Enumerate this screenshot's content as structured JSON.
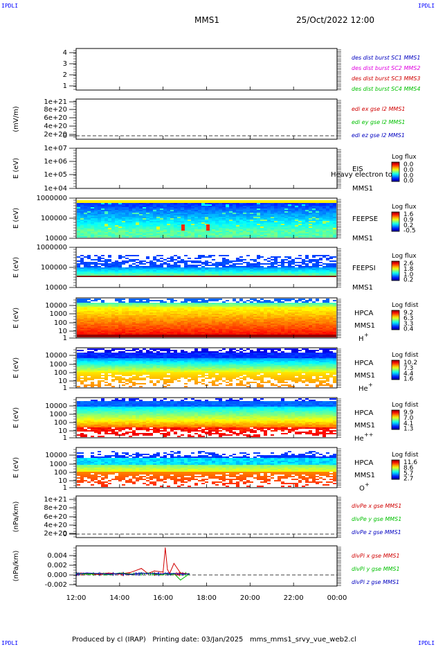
{
  "header": {
    "corner_label": "IPDLI",
    "spacecraft": "MMS1",
    "datetime": "25/Oct/2022 12:00"
  },
  "footer": {
    "producer": "Produced by cl (IRAP)",
    "printing_date": "Printing date: 03/Jan/2025",
    "filename": "mms_mms1_srvy_vue_web2.cl"
  },
  "colors": {
    "mms1": "#0000c0",
    "mms2": "#e000e0",
    "mms3": "#d00000",
    "mms4": "#00c000",
    "x_component": "#d00000",
    "y_component": "#00c000",
    "z_component": "#0000c0"
  },
  "time_axis": {
    "ticks": [
      "12:00",
      "14:00",
      "16:00",
      "18:00",
      "20:00",
      "22:00",
      "00:00"
    ],
    "range_hours": [
      12,
      24
    ]
  },
  "chart_data": [
    {
      "type": "line",
      "panel": "des_dist_burst",
      "ylabel": "",
      "yticks": [
        "4",
        "3",
        "2",
        "1"
      ],
      "ylim": [
        0.6,
        4.4
      ],
      "legend": [
        {
          "text": "des dist burst SC1 MMS1",
          "color": "#0000c0"
        },
        {
          "text": "des dist burst SC2 MMS2",
          "color": "#e000e0"
        },
        {
          "text": "des dist burst SC3 MMS3",
          "color": "#d00000"
        },
        {
          "text": "des dist burst SC4 MMS4",
          "color": "#00c000"
        }
      ],
      "series": []
    },
    {
      "type": "line",
      "panel": "edi_e",
      "ylabel": "(mV/m)",
      "yticks": [
        "1e+21",
        "8e+20",
        "6e+20",
        "4e+20",
        "2e+20",
        "0"
      ],
      "ylim": [
        -1e+20,
        1.05e+21
      ],
      "zero_line": true,
      "legend": [
        {
          "text": "edi ex gse l2 MMS1",
          "color": "#d00000"
        },
        {
          "text": "edi ey gse l2 MMS1",
          "color": "#00c000"
        },
        {
          "text": "edi ez gse l2 MMS1",
          "color": "#0000c0"
        }
      ],
      "series": []
    },
    {
      "type": "heatmap",
      "panel": "eis",
      "ylabel": "E (eV)",
      "yticks": [
        "1e+07",
        "1e+06",
        "1e+05",
        "1e+04"
      ],
      "ylim": [
        10000,
        10000000
      ],
      "yscale": "log",
      "labels": [
        "EIS",
        "MMS1"
      ],
      "overlay_text": "Heavy electron to",
      "colorbar": {
        "title": "Log flux",
        "ticks": [
          "0.0",
          "0.0",
          "0.0",
          "0.0"
        ]
      },
      "data_extent_hours": [
        12,
        12
      ]
    },
    {
      "type": "heatmap",
      "panel": "feeps_e",
      "ylabel": "E (eV)",
      "yticks": [
        "1000000",
        "100000",
        "10000"
      ],
      "ylim": [
        10000,
        1000000
      ],
      "yscale": "log",
      "labels": [
        "FEEPSE",
        "MMS1"
      ],
      "colorbar": {
        "title": "Log flux",
        "ticks": [
          "1.6",
          "0.9",
          "0.2",
          "-0.5"
        ]
      },
      "data_extent_hours": [
        12,
        24
      ]
    },
    {
      "type": "heatmap",
      "panel": "feeps_i",
      "ylabel": "E (eV)",
      "yticks": [
        "1000000",
        "100000",
        "10000"
      ],
      "ylim": [
        10000,
        1000000
      ],
      "yscale": "log",
      "labels": [
        "FEEPSI",
        "MMS1"
      ],
      "colorbar": {
        "title": "Log flux",
        "ticks": [
          "2.6",
          "1.8",
          "1.0",
          "0.2"
        ]
      },
      "data_extent_hours": [
        12,
        24
      ]
    },
    {
      "type": "heatmap",
      "panel": "hpca_h",
      "ylabel": "E (eV)",
      "yticks": [
        "10000",
        "1000",
        "100",
        "10",
        "1"
      ],
      "ylim": [
        1,
        40000
      ],
      "yscale": "log",
      "labels": [
        "HPCA",
        "MMS1"
      ],
      "species": "H",
      "charge": "+",
      "colorbar": {
        "title": "Log fdist",
        "ticks": [
          "9.2",
          "6.3",
          "3.3",
          "0.4"
        ]
      },
      "data_extent_hours": [
        12,
        24
      ]
    },
    {
      "type": "heatmap",
      "panel": "hpca_he1",
      "ylabel": "E (eV)",
      "yticks": [
        "10000",
        "1000",
        "100",
        "10",
        "1"
      ],
      "ylim": [
        1,
        40000
      ],
      "yscale": "log",
      "labels": [
        "HPCA",
        "MMS1"
      ],
      "species": "He",
      "charge": "+",
      "colorbar": {
        "title": "Log fdist",
        "ticks": [
          "10.2",
          "7.3",
          "4.4",
          "1.6"
        ]
      },
      "data_extent_hours": [
        12,
        24
      ]
    },
    {
      "type": "heatmap",
      "panel": "hpca_he2",
      "ylabel": "E (eV)",
      "yticks": [
        "10000",
        "1000",
        "100",
        "10",
        "1"
      ],
      "ylim": [
        1,
        40000
      ],
      "yscale": "log",
      "labels": [
        "HPCA",
        "MMS1"
      ],
      "species": "He",
      "charge": "++",
      "colorbar": {
        "title": "Log fdist",
        "ticks": [
          "9.9",
          "7.0",
          "4.1",
          "1.3"
        ]
      },
      "data_extent_hours": [
        12,
        24
      ]
    },
    {
      "type": "heatmap",
      "panel": "hpca_o",
      "ylabel": "E (eV)",
      "yticks": [
        "10000",
        "1000",
        "100",
        "10",
        "1"
      ],
      "ylim": [
        1,
        40000
      ],
      "yscale": "log",
      "labels": [
        "HPCA",
        "MMS1"
      ],
      "species": "O",
      "charge": "+",
      "colorbar": {
        "title": "Log fdist",
        "ticks": [
          "11.6",
          "8.6",
          "5.7",
          "2.7"
        ]
      },
      "data_extent_hours": [
        12,
        24
      ]
    },
    {
      "type": "line",
      "panel": "divpe",
      "ylabel": "(nPa/km)",
      "yticks": [
        "1e+21",
        "8e+20",
        "6e+20",
        "4e+20",
        "2e+20",
        "0"
      ],
      "ylim": [
        -1e+20,
        1.05e+21
      ],
      "zero_line": true,
      "legend": [
        {
          "text": "divPe x gse MMS1",
          "color": "#d00000"
        },
        {
          "text": "divPe y gse MMS1",
          "color": "#00c000"
        },
        {
          "text": "divPe z gse MMS1",
          "color": "#0000c0"
        }
      ],
      "series": []
    },
    {
      "type": "line",
      "panel": "divpi",
      "ylabel": "(nPa/km)",
      "yticks": [
        "0.004",
        "0.002",
        "0.000",
        "-0.002"
      ],
      "ylim": [
        -0.0024,
        0.0056
      ],
      "zero_line": true,
      "legend": [
        {
          "text": "divPi x gse MMS1",
          "color": "#d00000"
        },
        {
          "text": "divPi y gse MMS1",
          "color": "#00c000"
        },
        {
          "text": "divPi z gse MMS1",
          "color": "#0000c0"
        }
      ],
      "x": [
        12.0,
        12.5,
        13.0,
        13.5,
        14.0,
        14.5,
        15.0,
        15.3,
        15.6,
        16.0,
        16.1,
        16.2,
        16.3,
        16.5,
        16.8,
        17.2
      ],
      "series": [
        {
          "name": "divPi x gse MMS1",
          "values": [
            0.0,
            0.0001,
            -0.0001,
            0.0002,
            0.0,
            0.0003,
            0.0011,
            0.0001,
            0.0006,
            0.0004,
            0.0052,
            0.0009,
            0.0001,
            0.0021,
            0.0002,
            0.0
          ]
        },
        {
          "name": "divPi y gse MMS1",
          "values": [
            0.0001,
            0.0,
            0.0001,
            -0.0001,
            0.0002,
            0.0,
            0.0001,
            0.0002,
            0.0,
            -0.0002,
            0.0001,
            0.0,
            -0.0001,
            0.0001,
            -0.0012,
            0.0
          ]
        },
        {
          "name": "divPi z gse MMS1",
          "values": [
            0.0,
            0.0002,
            0.0001,
            0.0,
            0.0001,
            -0.0001,
            0.0002,
            0.0001,
            0.0001,
            0.0,
            0.0002,
            0.0001,
            0.0,
            0.0001,
            0.0,
            0.0
          ]
        }
      ]
    }
  ]
}
